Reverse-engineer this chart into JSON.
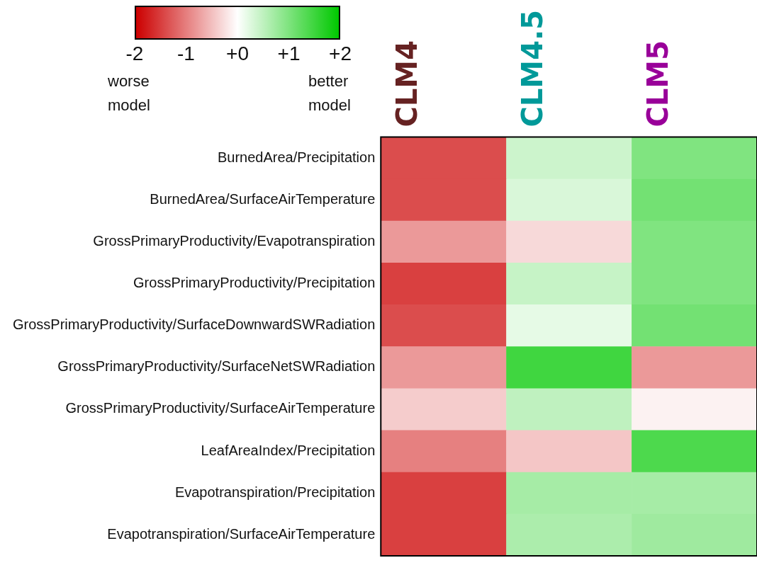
{
  "chart_data": {
    "type": "heatmap",
    "categories": [
      "CLM4",
      "CLM4.5",
      "CLM5"
    ],
    "y_categories": [
      "BurnedArea/Precipitation",
      "BurnedArea/SurfaceAirTemperature",
      "GrossPrimaryProductivity/Evapotranspiration",
      "GrossPrimaryProductivity/Precipitation",
      "GrossPrimaryProductivity/SurfaceDownwardSWRadiation",
      "GrossPrimaryProductivity/SurfaceNetSWRadiation",
      "GrossPrimaryProductivity/SurfaceAirTemperature",
      "LeafAreaIndex/Precipitation",
      "Evapotranspiration/Precipitation",
      "Evapotranspiration/SurfaceAirTemperature"
    ],
    "cells": [
      [
        -1.4,
        0.4,
        1.0
      ],
      [
        -1.4,
        0.3,
        1.1
      ],
      [
        -0.8,
        -0.3,
        1.0
      ],
      [
        -1.5,
        0.45,
        1.0
      ],
      [
        -1.4,
        0.2,
        1.1
      ],
      [
        -0.8,
        1.5,
        -0.8
      ],
      [
        -0.4,
        0.5,
        -0.1
      ],
      [
        -1.0,
        -0.45,
        1.4
      ],
      [
        -1.5,
        0.7,
        0.7
      ],
      [
        -1.5,
        0.65,
        0.75
      ]
    ],
    "clim": [
      -2,
      2
    ],
    "cticks": [
      {
        "value": -2,
        "label": "-2"
      },
      {
        "value": -1,
        "label": "-1"
      },
      {
        "value": 0,
        "label": "+0"
      },
      {
        "value": 1,
        "label": "+1"
      },
      {
        "value": 2,
        "label": "+2"
      }
    ],
    "annotations": [
      "worse\nmodel",
      "better\nmodel"
    ]
  }
}
